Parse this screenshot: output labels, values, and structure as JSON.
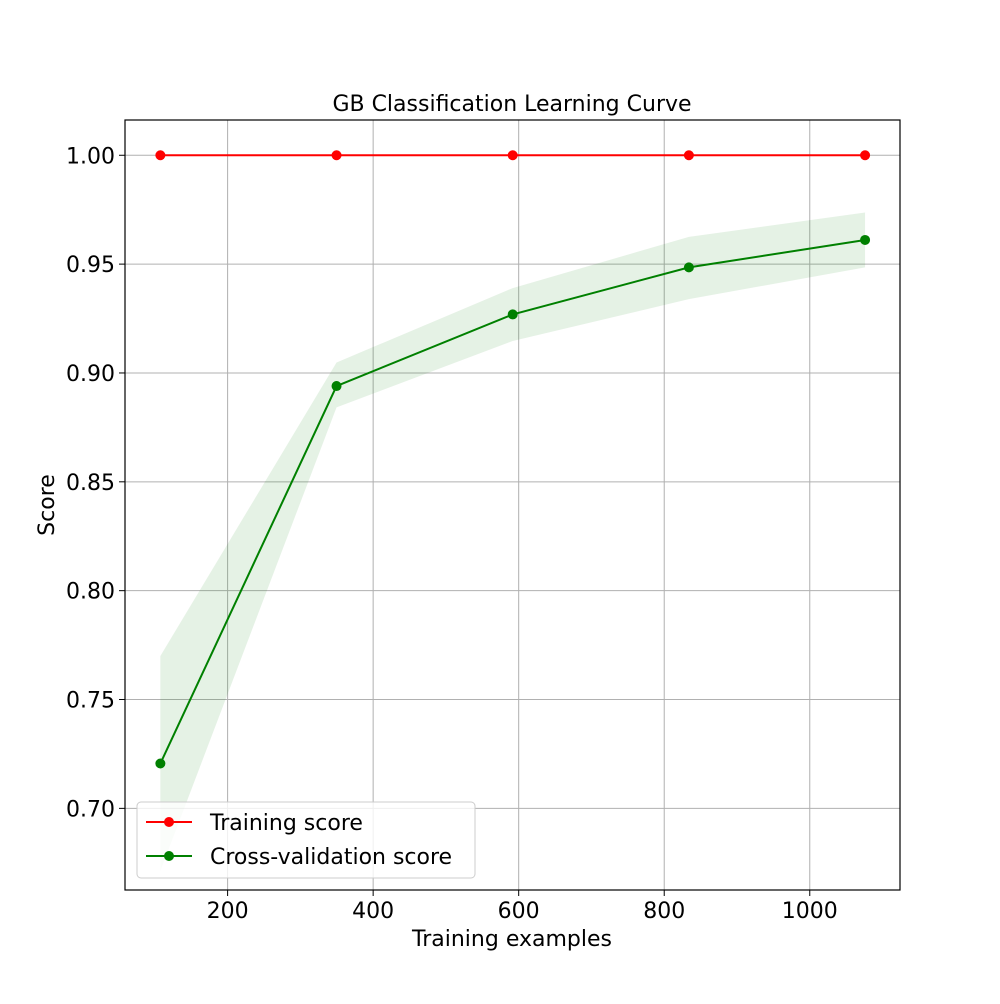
{
  "chart_data": {
    "type": "line",
    "title": "GB Classification Learning Curve",
    "xlabel": "Training examples",
    "ylabel": "Score",
    "xlim": [
      59,
      1124
    ],
    "ylim": [
      0.6625,
      1.0162
    ],
    "grid": true,
    "legend_position": "lower left",
    "x": [
      107.6,
      349.7,
      591.8,
      833.9,
      1076
    ],
    "series": [
      {
        "name": "Training score",
        "color": "#ff0000",
        "marker": "o",
        "values": [
          1.0,
          1.0,
          1.0,
          1.0,
          1.0
        ],
        "band_lower": [
          1.0,
          1.0,
          1.0,
          1.0,
          1.0
        ],
        "band_upper": [
          1.0,
          1.0,
          1.0,
          1.0,
          1.0
        ]
      },
      {
        "name": "Cross-validation score",
        "color": "#008000",
        "marker": "o",
        "values": [
          0.7206,
          0.894,
          0.9269,
          0.9485,
          0.9611
        ],
        "band_lower": [
          0.6712,
          0.8842,
          0.9147,
          0.9339,
          0.9485
        ],
        "band_upper": [
          0.77,
          0.9048,
          0.939,
          0.9625,
          0.9737
        ]
      }
    ],
    "xticks": [
      200,
      400,
      600,
      800,
      1000
    ],
    "xtick_labels": [
      "200",
      "400",
      "600",
      "800",
      "1000"
    ],
    "yticks": [
      0.7,
      0.75,
      0.8,
      0.85,
      0.9,
      0.95,
      1.0
    ],
    "ytick_labels": [
      "0.70",
      "0.75",
      "0.80",
      "0.85",
      "0.90",
      "0.95",
      "1.00"
    ]
  }
}
